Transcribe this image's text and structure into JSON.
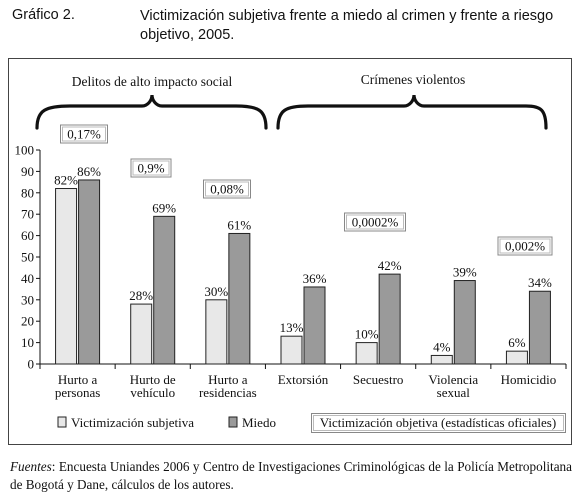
{
  "figure": {
    "label": "Gráfico 2.",
    "title": "Victimización subjetiva frente a miedo al crimen y frente a riesgo objetivo, 2005."
  },
  "groups": {
    "left": "Delitos de alto impacto social",
    "right": "Crímenes violentos"
  },
  "chart_data": {
    "type": "bar",
    "categories": [
      [
        "Hurto a",
        "personas"
      ],
      [
        "Hurto de",
        "vehículo"
      ],
      [
        "Hurto a",
        "residencias"
      ],
      [
        "Extorsión"
      ],
      [
        "Secuestro"
      ],
      [
        "Violencia",
        "sexual"
      ],
      [
        "Homicidio"
      ]
    ],
    "series": [
      {
        "name": "Victimización subjetiva",
        "values": [
          82,
          28,
          30,
          13,
          10,
          4,
          6
        ],
        "labels": [
          "82%",
          "28%",
          "30%",
          "13%",
          "10%",
          "4%",
          "6%"
        ],
        "color": "#e8e8e8"
      },
      {
        "name": "Miedo",
        "values": [
          86,
          69,
          61,
          36,
          42,
          39,
          34
        ],
        "labels": [
          "86%",
          "69%",
          "61%",
          "36%",
          "42%",
          "39%",
          "34%"
        ],
        "color": "#9a9a9a"
      }
    ],
    "objective_labels": [
      "0,17%",
      "0,9%",
      "0,08%",
      "0,0002%",
      "0,002%"
    ],
    "objective_legend": "Victimización objetiva (estadísticas oficiales)",
    "yticks": [
      0,
      10,
      20,
      30,
      40,
      50,
      60,
      70,
      80,
      90,
      100
    ],
    "ylim": [
      0,
      100
    ],
    "grid": false,
    "legend_position": "bottom"
  },
  "footer": {
    "source_label": "Fuentes",
    "source_text": ": Encuesta Uniandes 2006 y Centro de Investigaciones Criminológicas de la Policía Metropolitana de Bogotá y Dane, cálculos de los autores."
  }
}
